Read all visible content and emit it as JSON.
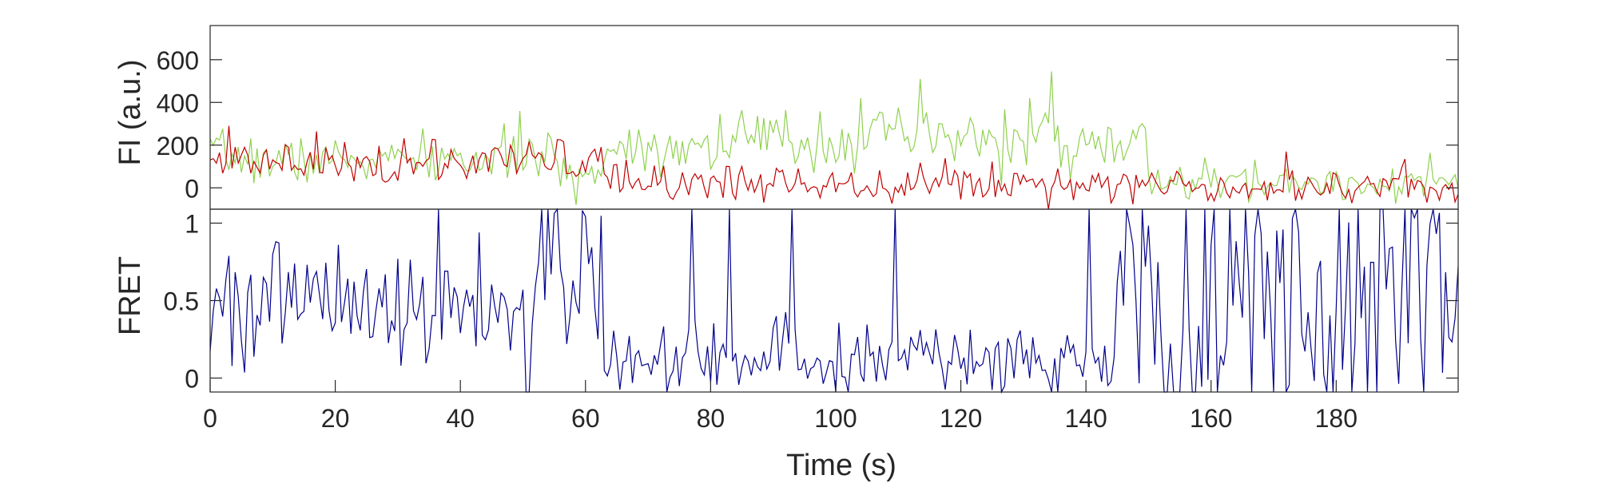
{
  "chart_data": [
    {
      "type": "line",
      "ylabel": "FI (a.u.)",
      "xlabel": "",
      "xlim": [
        0,
        199.5
      ],
      "ylim": [
        -100,
        760
      ],
      "yticks": [
        0,
        200,
        400,
        600
      ],
      "ytick_labels": [
        "0",
        "200",
        "400",
        "600"
      ],
      "x": {
        "start": 0,
        "stop": 199.5,
        "step": 0.5
      },
      "series": [
        {
          "color": "#8fd14f",
          "segments": [
            {
              "x_from": 0,
              "x_to": 6,
              "mean": 150,
              "noise": 55
            },
            {
              "x_from": 6,
              "x_to": 48,
              "mean": 130,
              "noise": 55
            },
            {
              "x_from": 48,
              "x_to": 56,
              "mean": 130,
              "noise": 60
            },
            {
              "x_from": 56,
              "x_to": 63,
              "mean": 60,
              "noise": 50
            },
            {
              "x_from": 63,
              "x_to": 80,
              "mean": 200,
              "noise": 60
            },
            {
              "x_from": 80,
              "x_to": 135,
              "mean": 225,
              "noise": 75
            },
            {
              "x_from": 135,
              "x_to": 150,
              "mean": 200,
              "noise": 60
            },
            {
              "x_from": 150,
              "x_to": 199.5,
              "mean": 25,
              "noise": 45
            }
          ],
          "peaks": [
            {
              "x": 49.5,
              "y": 360
            },
            {
              "x": 113.5,
              "y": 510
            },
            {
              "x": 134.5,
              "y": 545
            },
            {
              "x": 131,
              "y": 420
            },
            {
              "x": 104,
              "y": 420
            },
            {
              "x": 149,
              "y": 300
            }
          ]
        },
        {
          "color": "#c00000",
          "segments": [
            {
              "x_from": 0,
              "x_to": 48,
              "mean": 110,
              "noise": 50
            },
            {
              "x_from": 48,
              "x_to": 63,
              "mean": 130,
              "noise": 50
            },
            {
              "x_from": 63,
              "x_to": 150,
              "mean": 25,
              "noise": 45
            },
            {
              "x_from": 150,
              "x_to": 199.5,
              "mean": 10,
              "noise": 40
            }
          ],
          "peaks": [
            {
              "x": 3,
              "y": 290
            },
            {
              "x": 172,
              "y": 170
            }
          ]
        }
      ]
    },
    {
      "type": "line",
      "ylabel": "FRET",
      "xlabel": "Time (s)",
      "xlim": [
        0,
        199.5
      ],
      "ylim": [
        -0.09,
        1.09
      ],
      "yticks": [
        0,
        0.5,
        1
      ],
      "ytick_labels": [
        "0",
        "0.5",
        "1"
      ],
      "xticks": [
        0,
        20,
        40,
        60,
        80,
        100,
        120,
        140,
        160,
        180
      ],
      "xtick_labels": [
        "0",
        "20",
        "40",
        "60",
        "80",
        "100",
        "120",
        "140",
        "160",
        "180"
      ],
      "x": {
        "start": 0,
        "stop": 199.5,
        "step": 0.5
      },
      "series": [
        {
          "color": "#00008b",
          "segments": [
            {
              "x_from": 0,
              "x_to": 48,
              "mean": 0.47,
              "noise": 0.2
            },
            {
              "x_from": 48,
              "x_to": 52,
              "mean": 0.35,
              "noise": 0.25
            },
            {
              "x_from": 52,
              "x_to": 63,
              "mean": 0.65,
              "noise": 0.3
            },
            {
              "x_from": 63,
              "x_to": 145,
              "mean": 0.12,
              "noise": 0.12
            },
            {
              "x_from": 145,
              "x_to": 199.5,
              "mean": 0.5,
              "noise": 0.55
            }
          ],
          "spikes": [
            {
              "x": 77,
              "y": 1.09
            },
            {
              "x": 83,
              "y": 1.09
            },
            {
              "x": 93,
              "y": 1.09
            },
            {
              "x": 109.5,
              "y": 1.09
            },
            {
              "x": 140.5,
              "y": 1.09
            },
            {
              "x": 36.5,
              "y": 1.09
            },
            {
              "x": 55.5,
              "y": 1.09
            }
          ]
        }
      ]
    }
  ]
}
